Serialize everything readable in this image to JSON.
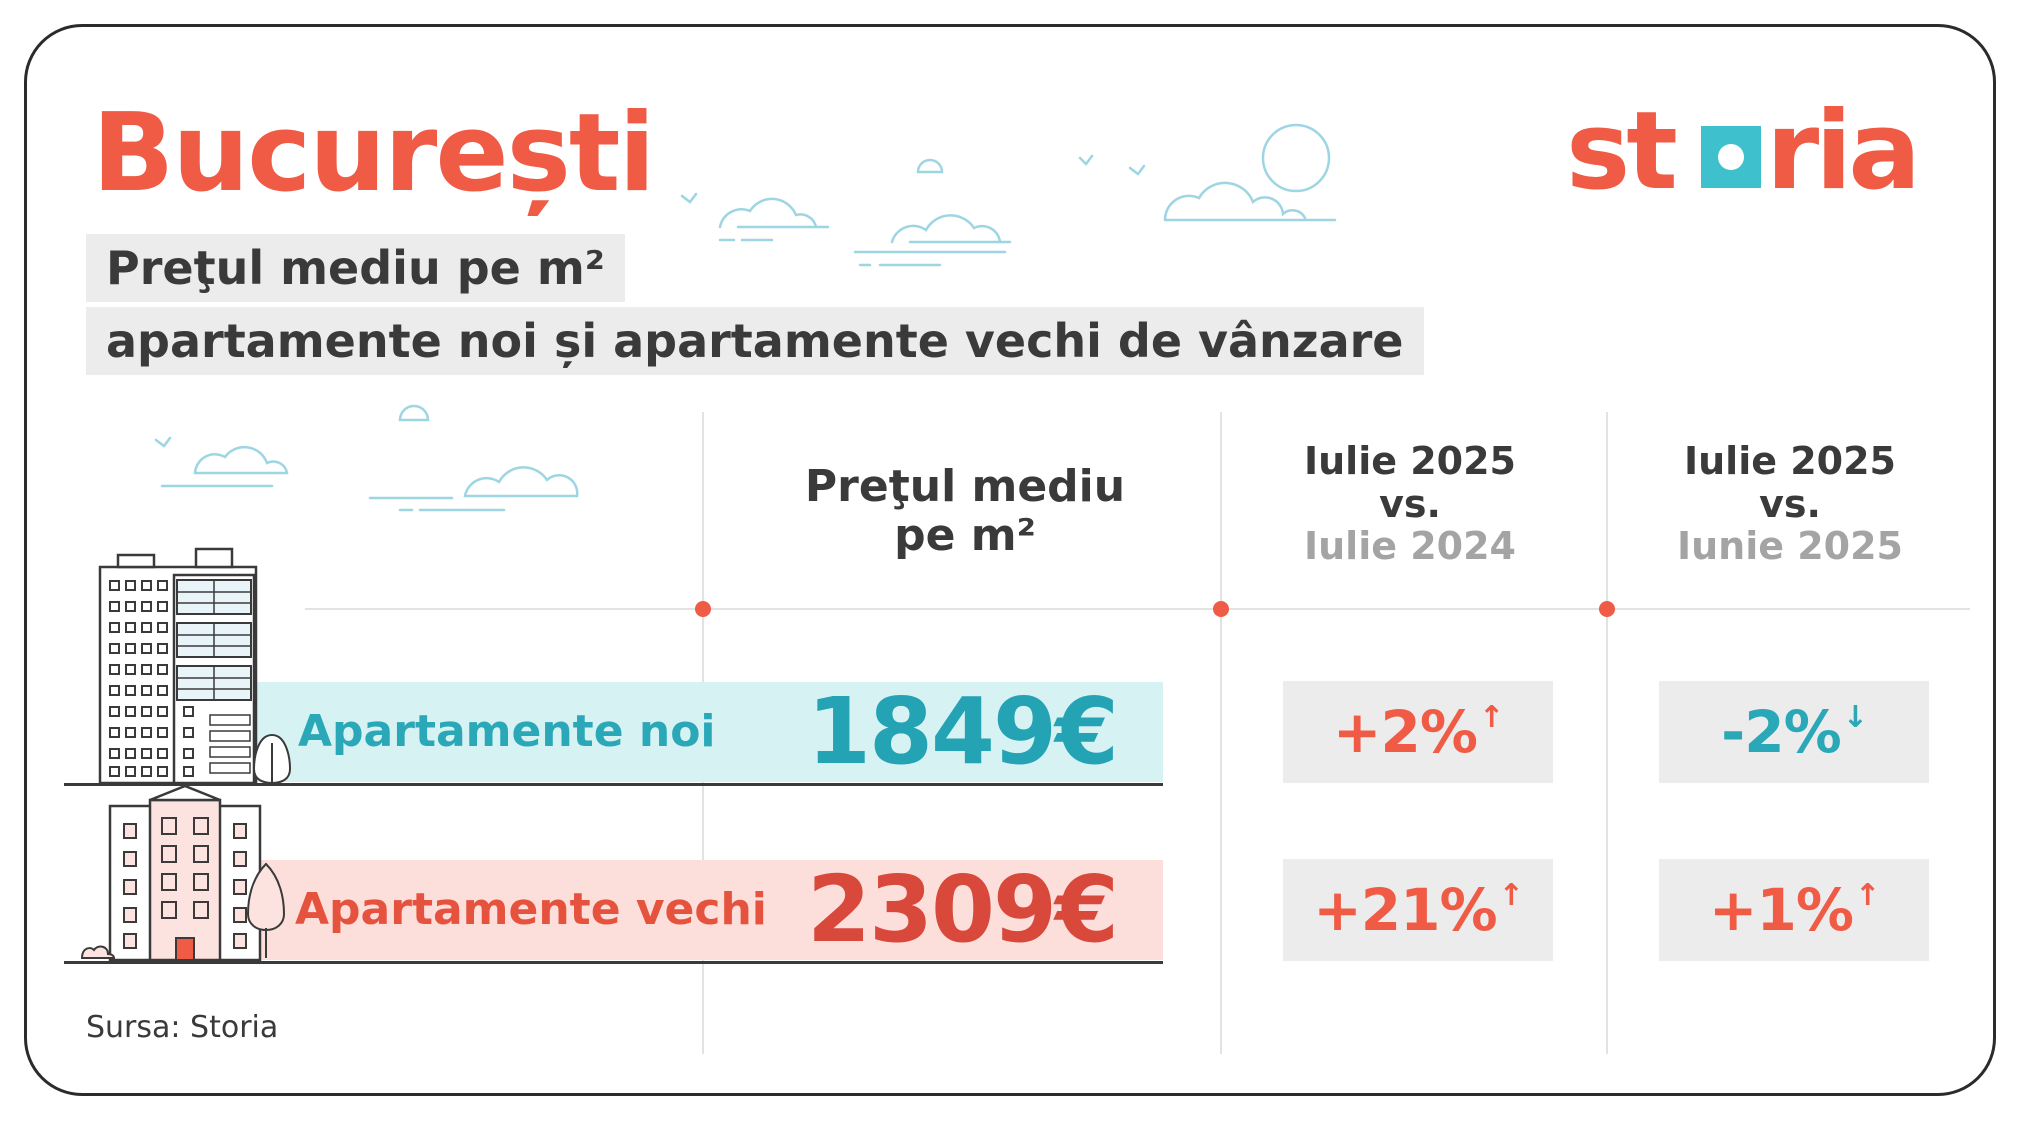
{
  "header": {
    "city": "București",
    "subtitle_line1": "Preţul mediu pe m²",
    "subtitle_line2": "apartamente noi și apartamente vechi de vânzare",
    "logo": "storia"
  },
  "columns": {
    "price": "Preţul mediu pe m²",
    "yoy": {
      "line1": "Iulie 2025",
      "line2": "vs.",
      "line3": "Iulie 2024"
    },
    "mom": {
      "line1": "Iulie 2025",
      "line2": "vs.",
      "line3": "Iunie 2025"
    }
  },
  "rows": [
    {
      "label": "Apartamente noi",
      "price": "1849€",
      "yoy": "+2%",
      "yoy_dir": "up",
      "mom": "-2%",
      "mom_dir": "down"
    },
    {
      "label": "Apartamente vechi",
      "price": "2309€",
      "yoy": "+21%",
      "yoy_dir": "up",
      "mom": "+1%",
      "mom_dir": "up"
    }
  ],
  "icons": {
    "up": "↑",
    "down": "↓"
  },
  "source": "Sursa: Storia",
  "colors": {
    "brand": "#ef5b45",
    "teal": "#2aa8b8",
    "grey_panel": "#ececec"
  }
}
